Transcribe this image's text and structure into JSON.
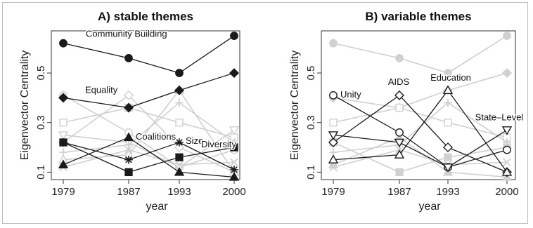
{
  "chart_data": [
    {
      "type": "line",
      "title": "A) stable themes",
      "xlabel": "year",
      "ylabel": "Eigenvector Centrality",
      "x": [
        1979,
        1987,
        1993,
        2000
      ],
      "xticks": [
        "1979",
        "1987",
        "1993",
        "2000"
      ],
      "ylim": [
        0.07,
        0.67
      ],
      "yticks": [
        0.1,
        0.3,
        0.5
      ],
      "ytick_labels": [
        "0.1",
        "0.3",
        "0.5"
      ],
      "grid": false,
      "legend": "none (series labeled inline)",
      "highlight_color": "#1a1a1a",
      "background_color": "#d0d0d0",
      "series": [
        {
          "name": "Community Building",
          "marker": "circle-filled",
          "values": [
            0.62,
            0.56,
            0.5,
            0.65
          ]
        },
        {
          "name": "Equality",
          "marker": "diamond-filled",
          "values": [
            0.4,
            0.36,
            0.43,
            0.5
          ]
        },
        {
          "name": "Coalitions",
          "marker": "triangle-filled",
          "values": [
            0.13,
            0.24,
            0.1,
            0.08
          ]
        },
        {
          "name": "Size",
          "marker": "asterisk",
          "values": [
            0.22,
            0.15,
            0.22,
            0.11
          ]
        },
        {
          "name": "Diversity",
          "marker": "square-filled",
          "values": [
            0.22,
            0.1,
            0.16,
            0.2
          ]
        }
      ],
      "background_series": [
        {
          "marker": "circle-open",
          "values": [
            0.41,
            0.26,
            0.12,
            0.19
          ]
        },
        {
          "marker": "diamond-open",
          "values": [
            0.22,
            0.41,
            0.2,
            0.1
          ]
        },
        {
          "marker": "triangle-open",
          "values": [
            0.15,
            0.17,
            0.43,
            0.1
          ]
        },
        {
          "marker": "triangle-down-open",
          "values": [
            0.25,
            0.22,
            0.12,
            0.27
          ]
        },
        {
          "marker": "square-open",
          "values": [
            0.3,
            0.36,
            0.3,
            0.24
          ]
        },
        {
          "marker": "plus",
          "values": [
            0.18,
            0.21,
            0.38,
            0.22
          ]
        },
        {
          "marker": "x",
          "values": [
            0.12,
            0.19,
            0.13,
            0.14
          ]
        }
      ]
    },
    {
      "type": "line",
      "title": "B) variable themes",
      "xlabel": "year",
      "ylabel": "Eigenvector Centrality",
      "x": [
        1979,
        1987,
        1993,
        2000
      ],
      "xticks": [
        "1979",
        "1987",
        "1993",
        "2000"
      ],
      "ylim": [
        0.07,
        0.67
      ],
      "yticks": [
        0.1,
        0.3,
        0.5
      ],
      "ytick_labels": [
        "0.1",
        "0.3",
        "0.5"
      ],
      "grid": false,
      "legend": "none (series labeled inline)",
      "highlight_color": "#1a1a1a",
      "background_color": "#d0d0d0",
      "series": [
        {
          "name": "Unity",
          "marker": "circle-open",
          "values": [
            0.41,
            0.26,
            0.12,
            0.19
          ]
        },
        {
          "name": "AIDS",
          "marker": "diamond-open",
          "values": [
            0.22,
            0.41,
            0.2,
            0.1
          ]
        },
        {
          "name": "Education",
          "marker": "triangle-open",
          "values": [
            0.15,
            0.17,
            0.43,
            0.1
          ]
        },
        {
          "name": "State–Level",
          "marker": "triangle-down-open",
          "values": [
            0.25,
            0.22,
            0.12,
            0.27
          ]
        }
      ],
      "background_series": [
        {
          "marker": "circle-filled",
          "values": [
            0.62,
            0.56,
            0.5,
            0.65
          ]
        },
        {
          "marker": "diamond-filled",
          "values": [
            0.4,
            0.36,
            0.43,
            0.5
          ]
        },
        {
          "marker": "square-open",
          "values": [
            0.3,
            0.36,
            0.3,
            0.24
          ]
        },
        {
          "marker": "plus",
          "values": [
            0.18,
            0.21,
            0.38,
            0.22
          ]
        },
        {
          "marker": "triangle-filled",
          "values": [
            0.13,
            0.24,
            0.1,
            0.08
          ]
        },
        {
          "marker": "square-filled",
          "values": [
            0.22,
            0.1,
            0.16,
            0.2
          ]
        },
        {
          "marker": "x",
          "values": [
            0.12,
            0.19,
            0.13,
            0.14
          ]
        }
      ]
    }
  ]
}
